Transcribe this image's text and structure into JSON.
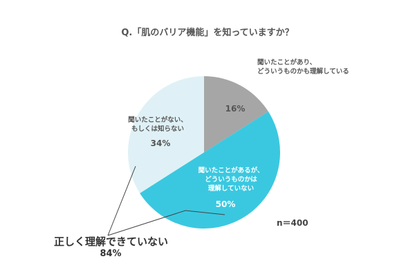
{
  "chart_data": {
    "type": "pie",
    "title": "Q.「肌のバリア機能」を知っていますか？",
    "slices": [
      {
        "lines": [
          "聞いたことがあり、",
          "どういうものかも理解している"
        ],
        "value": 16,
        "percent_label": "16%",
        "color": "#a6a6a6"
      },
      {
        "lines": [
          "聞いたことがあるが、",
          "どういうものかは",
          "理解していない"
        ],
        "value": 50,
        "percent_label": "50%",
        "color": "#3ac8e0"
      },
      {
        "lines": [
          "聞いたことがない、",
          "もしくは知らない"
        ],
        "value": 34,
        "percent_label": "34%",
        "color": "#dff1f6"
      }
    ],
    "sample_size": "n＝400",
    "callout": {
      "label": "正しく理解できていない",
      "percent_label": "84%"
    }
  }
}
